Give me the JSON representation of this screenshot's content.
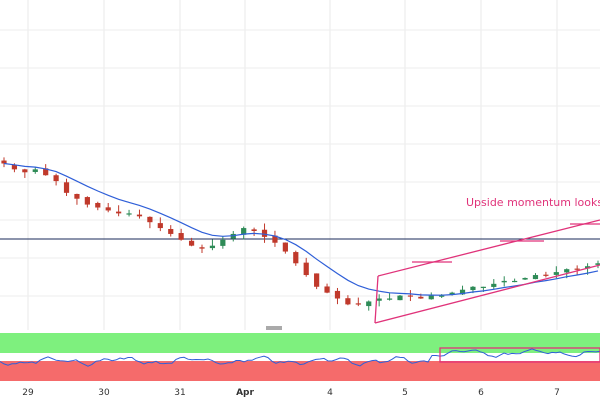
{
  "chart_data": {
    "type": "candlestick",
    "title": "",
    "xlabel": "",
    "ylabel": "",
    "grid": true,
    "x_ticks": [
      "29",
      "30",
      "31",
      "Apr",
      "4",
      "5",
      "6",
      "7"
    ],
    "annotation": "Upside momentum looks weak",
    "colors": {
      "up": "#2e8b57",
      "down": "#c0392b",
      "moving_average": "#2f5fd8",
      "channel": "#e0337a",
      "oscillator": "#2f5fd8",
      "overbought_zone": "#7ef07e",
      "oversold_zone": "#f56b6b",
      "horizontal_level": "#1a2a5a"
    },
    "price_series": {
      "description": "approximate close path (relative units, lower = lower price)",
      "close": [
        72,
        70,
        69,
        70,
        68,
        66,
        62,
        60,
        58,
        57,
        56,
        55,
        55,
        54,
        52,
        50,
        48,
        46,
        44,
        43,
        44,
        46,
        48,
        50,
        49,
        47,
        45,
        42,
        38,
        34,
        30,
        28,
        26,
        24,
        24,
        25,
        26,
        26,
        27,
        27,
        26,
        27,
        27,
        28,
        29,
        30,
        30,
        31,
        32,
        32,
        33,
        34,
        34,
        35,
        36,
        36,
        37,
        38
      ]
    },
    "horizontal_level": 44.5,
    "oscillator": {
      "overbought_band": "upper",
      "oversold_band": "lower"
    }
  }
}
